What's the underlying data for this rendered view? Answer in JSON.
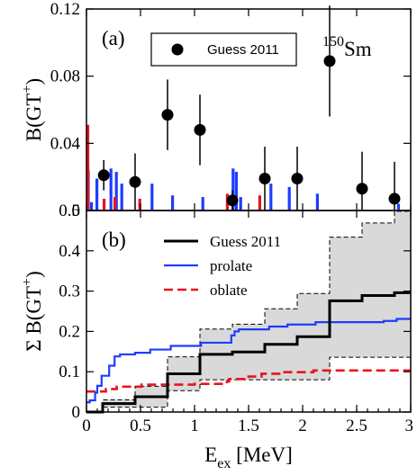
{
  "chart_data": [
    {
      "panel_label": "(a)",
      "type": "scatter",
      "nucleus_label": {
        "mass": "150",
        "symbol": "Sm"
      },
      "ylabel": {
        "main": "B(GT",
        "sup": "+",
        "close": ")"
      },
      "xlim": [
        0,
        3
      ],
      "ylim": [
        0,
        0.12
      ],
      "yticks": [
        "0",
        "0.04",
        "0.08",
        "0.12"
      ],
      "legend": {
        "label": "Guess 2011",
        "position": "top-center",
        "boxed": true
      },
      "colors": {
        "prolate": "#1e3cff",
        "oblate": "#e8141e",
        "data": "#000000"
      },
      "series": [
        {
          "name": "Guess 2011",
          "points": [
            {
              "x": 0.16,
              "y": 0.021,
              "yerr": 0.009
            },
            {
              "x": 0.45,
              "y": 0.017,
              "yerr": 0.017
            },
            {
              "x": 0.75,
              "y": 0.057,
              "yerr": 0.021
            },
            {
              "x": 1.05,
              "y": 0.048,
              "yerr": 0.021
            },
            {
              "x": 1.35,
              "y": 0.006,
              "yerr": 0.006
            },
            {
              "x": 1.65,
              "y": 0.019,
              "yerr": 0.019
            },
            {
              "x": 1.95,
              "y": 0.019,
              "yerr": 0.019
            },
            {
              "x": 2.25,
              "y": 0.089,
              "yerr": 0.033
            },
            {
              "x": 2.55,
              "y": 0.013,
              "yerr": 0.022
            },
            {
              "x": 2.85,
              "y": 0.007,
              "yerr": 0.022
            }
          ]
        },
        {
          "name": "prolate",
          "sticks": [
            {
              "x": 0.0,
              "y": 0.024
            },
            {
              "x": 0.03,
              "y": 0.005
            },
            {
              "x": 0.08,
              "y": 0.019
            },
            {
              "x": 0.21,
              "y": 0.025
            },
            {
              "x": 0.26,
              "y": 0.023
            },
            {
              "x": 0.31,
              "y": 0.016
            },
            {
              "x": 0.59,
              "y": 0.016
            },
            {
              "x": 0.78,
              "y": 0.009
            },
            {
              "x": 1.06,
              "y": 0.008
            },
            {
              "x": 1.34,
              "y": 0.025
            },
            {
              "x": 1.37,
              "y": 0.023
            },
            {
              "x": 1.41,
              "y": 0.008
            },
            {
              "x": 1.69,
              "y": 0.016
            },
            {
              "x": 1.86,
              "y": 0.014
            },
            {
              "x": 2.12,
              "y": 0.01
            },
            {
              "x": 2.87,
              "y": 0.004
            }
          ]
        },
        {
          "name": "oblate",
          "sticks": [
            {
              "x": 0.0,
              "y": 0.051
            },
            {
              "x": 0.02,
              "y": 0.028
            },
            {
              "x": 0.18,
              "y": 0.007
            },
            {
              "x": 0.28,
              "y": 0.008
            },
            {
              "x": 0.51,
              "y": 0.007
            },
            {
              "x": 1.32,
              "y": 0.01
            },
            {
              "x": 1.62,
              "y": 0.009
            }
          ]
        }
      ]
    },
    {
      "panel_label": "(b)",
      "type": "line",
      "xlabel": {
        "main": "E",
        "sub": "ex",
        "rest": " [MeV]"
      },
      "ylabel": {
        "main": "Σ B(GT",
        "sup": "+",
        "close": ")"
      },
      "xlim": [
        0,
        3
      ],
      "ylim": [
        0,
        0.5
      ],
      "xticks": [
        "0",
        "0.5",
        "1",
        "1.5",
        "2",
        "2.5",
        "3"
      ],
      "yticks": [
        "0",
        "0.1",
        "0.2",
        "0.3",
        "0.4",
        "0.5"
      ],
      "legend": {
        "position": "top-center",
        "boxed": false
      },
      "series": [
        {
          "name": "Guess 2011",
          "style": "step",
          "color": "#000000",
          "points": [
            [
              0,
              0
            ],
            [
              0.15,
              0
            ],
            [
              0.15,
              0.021
            ],
            [
              0.45,
              0.021
            ],
            [
              0.45,
              0.038
            ],
            [
              0.75,
              0.038
            ],
            [
              0.75,
              0.095
            ],
            [
              1.05,
              0.095
            ],
            [
              1.05,
              0.143
            ],
            [
              1.35,
              0.143
            ],
            [
              1.35,
              0.149
            ],
            [
              1.65,
              0.149
            ],
            [
              1.65,
              0.168
            ],
            [
              1.95,
              0.168
            ],
            [
              1.95,
              0.187
            ],
            [
              2.25,
              0.187
            ],
            [
              2.25,
              0.276
            ],
            [
              2.55,
              0.276
            ],
            [
              2.55,
              0.289
            ],
            [
              2.85,
              0.289
            ],
            [
              2.85,
              0.296
            ],
            [
              3.0,
              0.296
            ]
          ]
        },
        {
          "name": "Guess 2011 error band",
          "style": "band",
          "upper": [
            [
              0,
              0
            ],
            [
              0.15,
              0
            ],
            [
              0.15,
              0.03
            ],
            [
              0.45,
              0.03
            ],
            [
              0.45,
              0.064
            ],
            [
              0.75,
              0.064
            ],
            [
              0.75,
              0.137
            ],
            [
              1.05,
              0.137
            ],
            [
              1.05,
              0.206
            ],
            [
              1.35,
              0.206
            ],
            [
              1.35,
              0.218
            ],
            [
              1.65,
              0.218
            ],
            [
              1.65,
              0.256
            ],
            [
              1.95,
              0.256
            ],
            [
              1.95,
              0.294
            ],
            [
              2.25,
              0.294
            ],
            [
              2.25,
              0.434
            ],
            [
              2.55,
              0.434
            ],
            [
              2.55,
              0.469
            ],
            [
              2.85,
              0.469
            ],
            [
              2.85,
              0.498
            ],
            [
              3.0,
              0.498
            ]
          ],
          "lower": [
            [
              0,
              0
            ],
            [
              0.15,
              0
            ],
            [
              0.15,
              0.012
            ],
            [
              0.45,
              0.012
            ],
            [
              0.45,
              0.012
            ],
            [
              0.75,
              0.012
            ],
            [
              0.75,
              0.053
            ],
            [
              1.05,
              0.053
            ],
            [
              1.05,
              0.08
            ],
            [
              1.35,
              0.08
            ],
            [
              1.35,
              0.08
            ],
            [
              1.65,
              0.08
            ],
            [
              1.65,
              0.08
            ],
            [
              1.95,
              0.08
            ],
            [
              1.95,
              0.08
            ],
            [
              2.25,
              0.08
            ],
            [
              2.25,
              0.136
            ],
            [
              2.55,
              0.136
            ],
            [
              2.55,
              0.136
            ],
            [
              2.85,
              0.136
            ],
            [
              2.85,
              0.136
            ],
            [
              3.0,
              0.136
            ]
          ]
        },
        {
          "name": "prolate",
          "style": "step",
          "color": "#1e3cff",
          "points": [
            [
              0,
              0.024
            ],
            [
              0.03,
              0.024
            ],
            [
              0.03,
              0.029
            ],
            [
              0.08,
              0.029
            ],
            [
              0.08,
              0.048
            ],
            [
              0.1,
              0.048
            ],
            [
              0.1,
              0.065
            ],
            [
              0.14,
              0.065
            ],
            [
              0.14,
              0.09
            ],
            [
              0.21,
              0.09
            ],
            [
              0.21,
              0.115
            ],
            [
              0.26,
              0.115
            ],
            [
              0.26,
              0.138
            ],
            [
              0.31,
              0.138
            ],
            [
              0.31,
              0.143
            ],
            [
              0.45,
              0.143
            ],
            [
              0.45,
              0.147
            ],
            [
              0.59,
              0.147
            ],
            [
              0.59,
              0.155
            ],
            [
              0.78,
              0.155
            ],
            [
              0.78,
              0.164
            ],
            [
              1.06,
              0.164
            ],
            [
              1.06,
              0.172
            ],
            [
              1.34,
              0.172
            ],
            [
              1.34,
              0.19
            ],
            [
              1.37,
              0.19
            ],
            [
              1.37,
              0.2
            ],
            [
              1.41,
              0.2
            ],
            [
              1.41,
              0.205
            ],
            [
              1.69,
              0.205
            ],
            [
              1.69,
              0.212
            ],
            [
              1.86,
              0.212
            ],
            [
              1.86,
              0.217
            ],
            [
              2.12,
              0.217
            ],
            [
              2.12,
              0.223
            ],
            [
              2.75,
              0.223
            ],
            [
              2.75,
              0.226
            ],
            [
              2.87,
              0.226
            ],
            [
              2.87,
              0.231
            ],
            [
              3.0,
              0.231
            ]
          ]
        },
        {
          "name": "oblate",
          "style": "step-dashed",
          "color": "#e8141e",
          "points": [
            [
              0,
              0.051
            ],
            [
              0.18,
              0.051
            ],
            [
              0.18,
              0.057
            ],
            [
              0.28,
              0.057
            ],
            [
              0.28,
              0.063
            ],
            [
              0.51,
              0.063
            ],
            [
              0.51,
              0.068
            ],
            [
              1.0,
              0.068
            ],
            [
              1.0,
              0.07
            ],
            [
              1.3,
              0.07
            ],
            [
              1.3,
              0.076
            ],
            [
              1.32,
              0.076
            ],
            [
              1.32,
              0.082
            ],
            [
              1.5,
              0.082
            ],
            [
              1.5,
              0.088
            ],
            [
              1.62,
              0.088
            ],
            [
              1.62,
              0.095
            ],
            [
              1.8,
              0.095
            ],
            [
              1.8,
              0.099
            ],
            [
              2.1,
              0.099
            ],
            [
              2.1,
              0.103
            ],
            [
              3.0,
              0.103
            ]
          ]
        }
      ]
    }
  ]
}
